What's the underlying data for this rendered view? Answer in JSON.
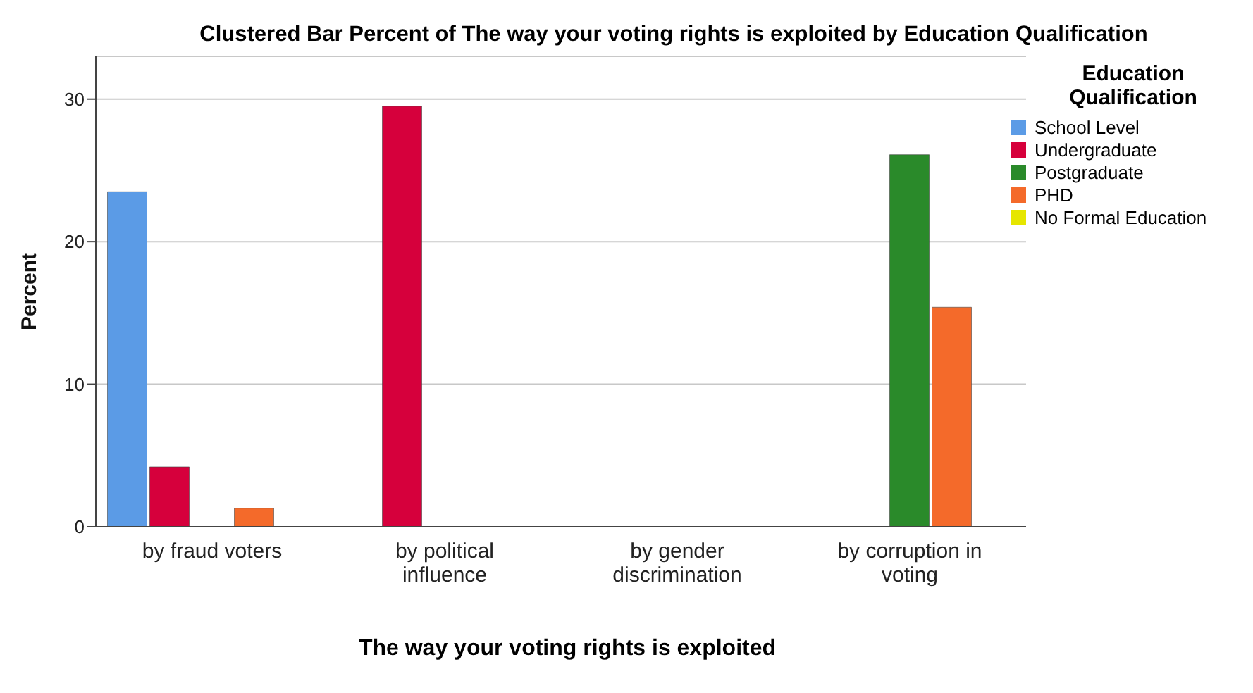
{
  "chart_data": {
    "type": "bar",
    "title": "Clustered Bar Percent of The way your voting rights is exploited  by Education Qualification",
    "xlabel": "The way your voting rights is exploited",
    "ylabel": "Percent",
    "legend_title": "Education Qualification",
    "categories": [
      "by fraud voters",
      "by political influence",
      "by gender discrimination",
      "by corruption in voting"
    ],
    "series": [
      {
        "name": "School Level",
        "color": "#5b9be6",
        "values": [
          23.5,
          null,
          null,
          null
        ]
      },
      {
        "name": "Undergraduate",
        "color": "#d6003c",
        "values": [
          4.2,
          29.5,
          null,
          null
        ]
      },
      {
        "name": "Postgraduate",
        "color": "#2a8a2a",
        "values": [
          null,
          null,
          null,
          26.1
        ]
      },
      {
        "name": "PHD",
        "color": "#f46a2a",
        "values": [
          1.3,
          null,
          null,
          15.4
        ]
      },
      {
        "name": "No Formal Education",
        "color": "#e6e600",
        "values": [
          null,
          null,
          null,
          null
        ]
      }
    ],
    "ylim": [
      0,
      33
    ],
    "yticks": [
      0,
      10,
      20,
      30
    ],
    "grid": "y",
    "legend": "top right"
  }
}
